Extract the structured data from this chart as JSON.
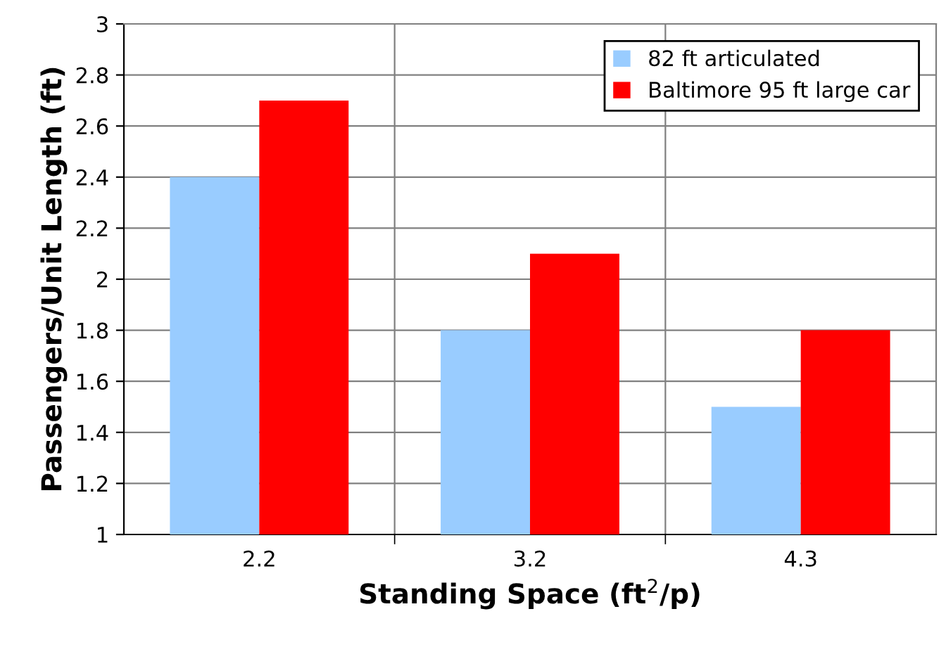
{
  "chart_data": {
    "type": "bar",
    "xlabel": "Standing Space (ft$^{2}$/p)",
    "ylabel": "Passengers/Unit Length (ft)",
    "categories": [
      "2.2",
      "3.2",
      "4.3"
    ],
    "series": [
      {
        "name": "82 ft articulated",
        "color": "#99ccff",
        "values": [
          2.4,
          1.8,
          1.5
        ]
      },
      {
        "name": "Baltimore 95 ft large car",
        "color": "#ff0000",
        "values": [
          2.7,
          2.1,
          1.8
        ]
      }
    ],
    "ylim": [
      1,
      3
    ],
    "yticks": [
      1,
      1.2,
      1.4,
      1.6,
      1.8,
      2,
      2.2,
      2.4,
      2.6,
      2.8,
      3
    ],
    "grid": true,
    "legend": "top right"
  }
}
